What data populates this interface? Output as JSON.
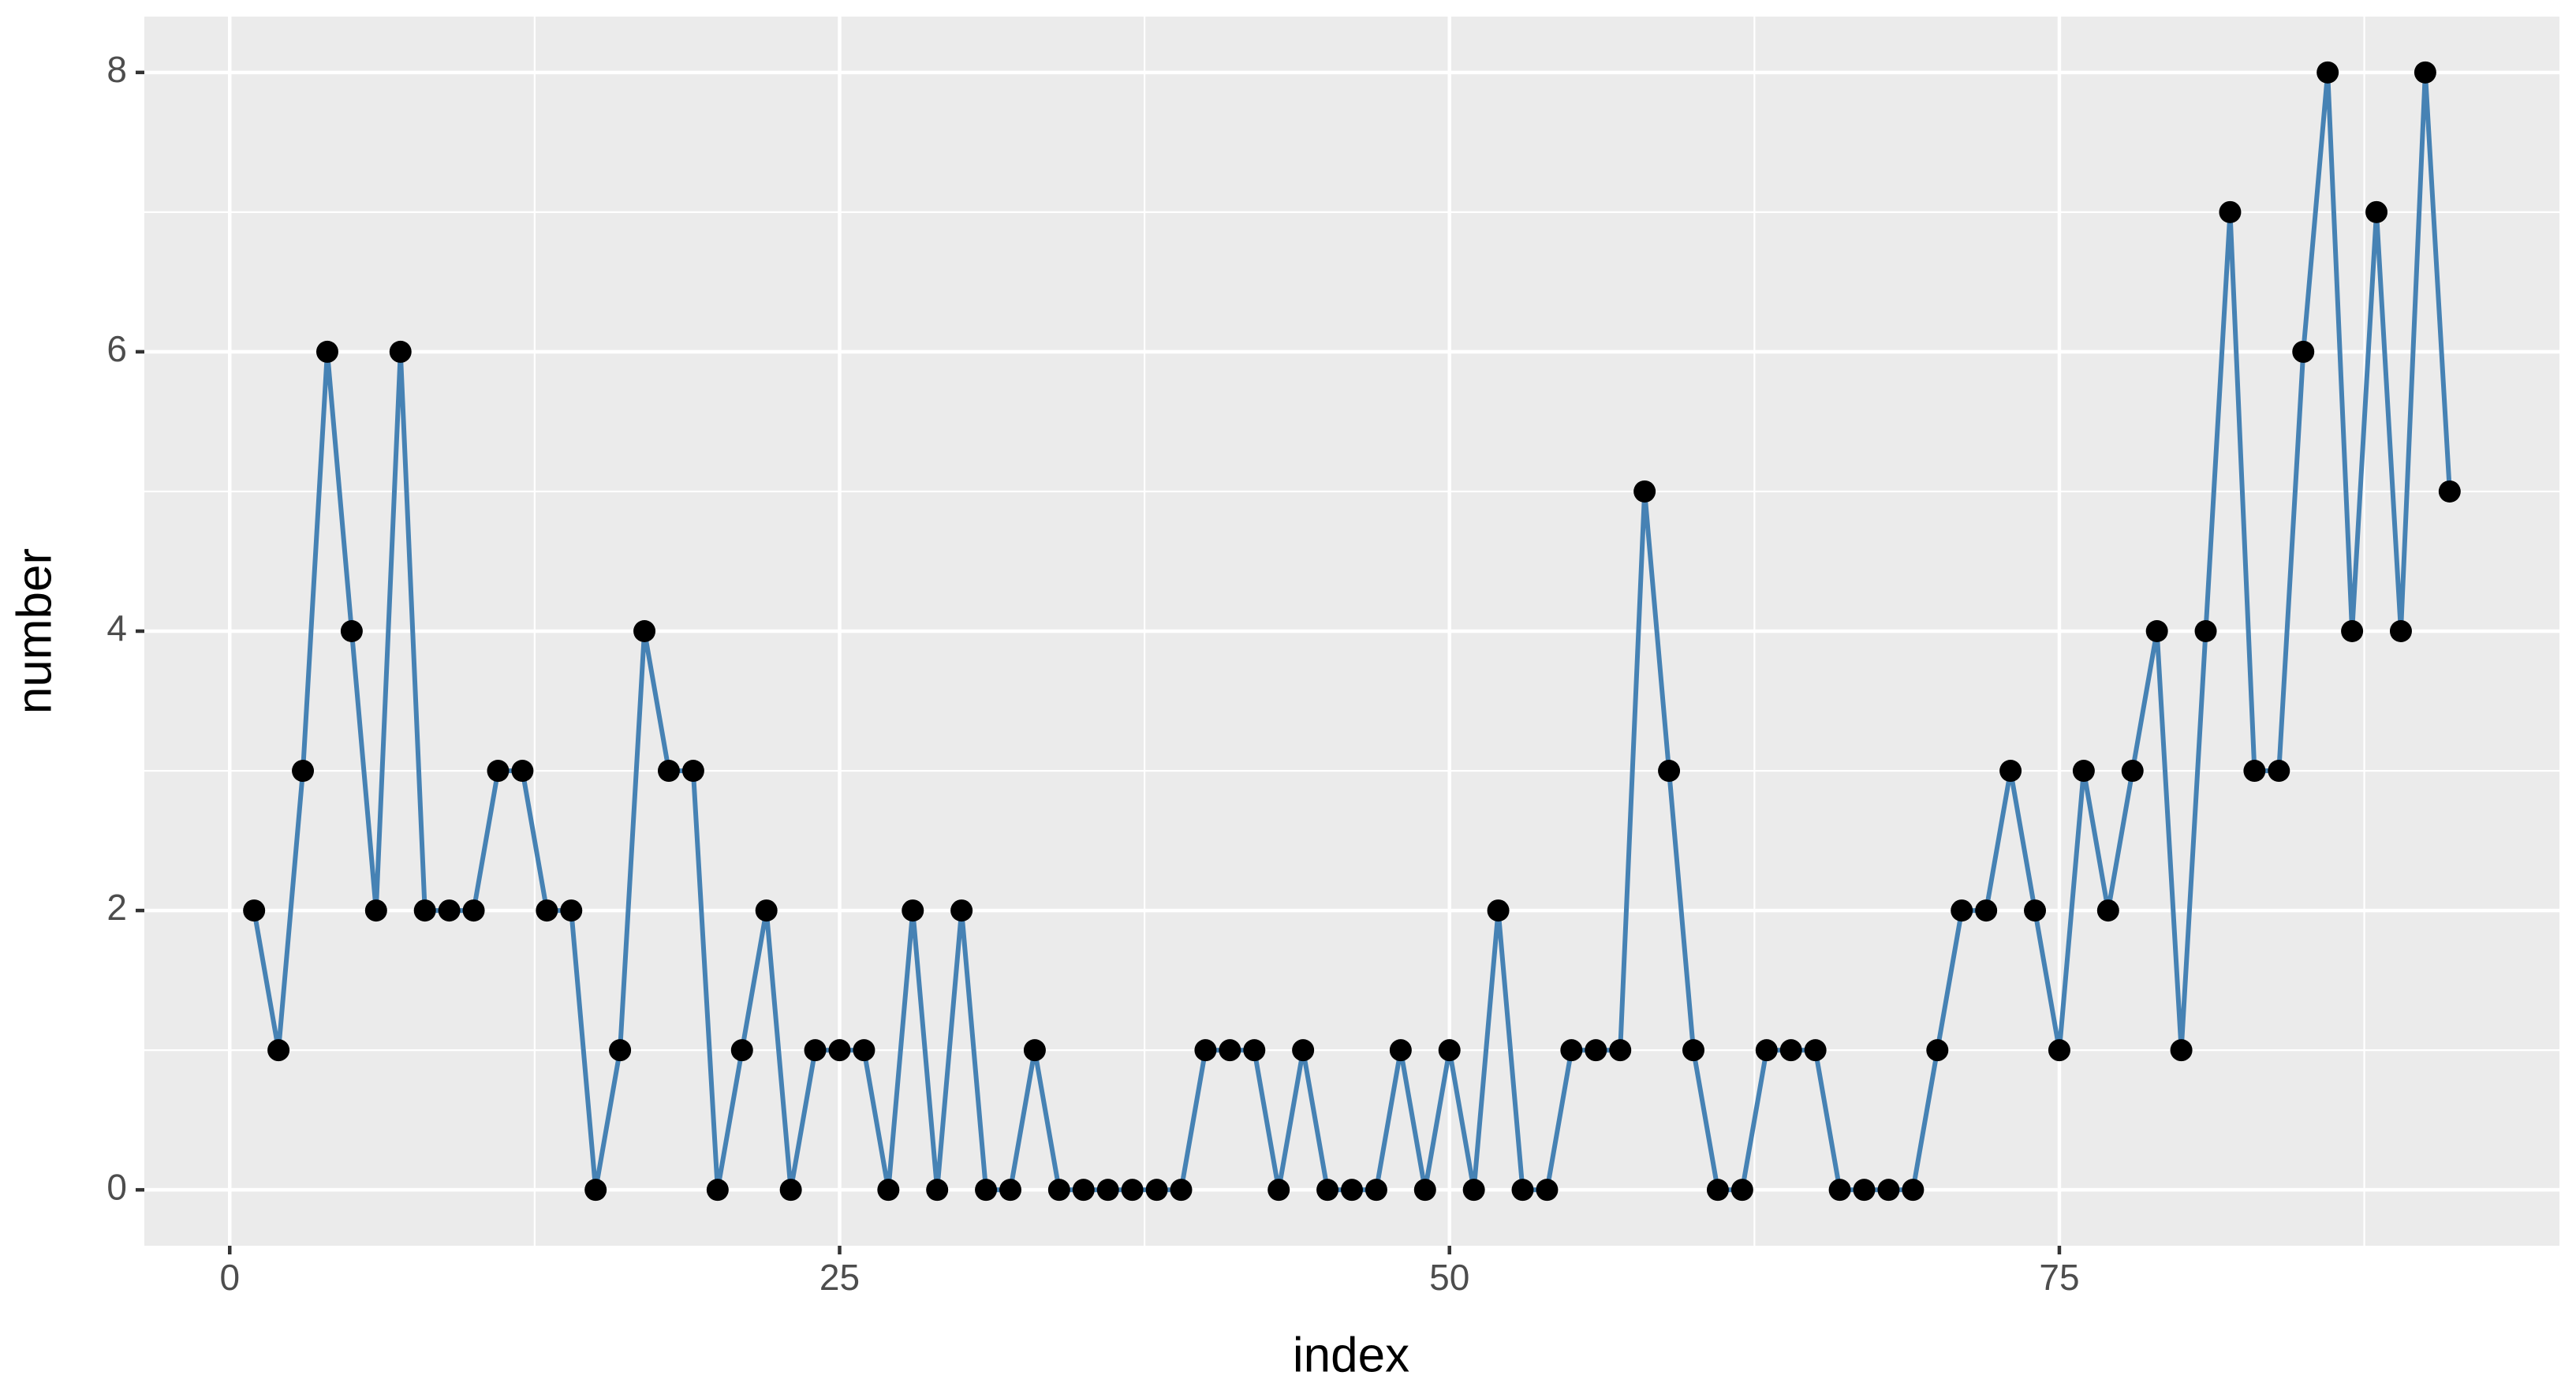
{
  "chart_data": {
    "type": "line",
    "x_label": "index",
    "y_label": "number",
    "x": [
      1,
      2,
      3,
      4,
      5,
      6,
      7,
      8,
      9,
      10,
      11,
      12,
      13,
      14,
      15,
      16,
      17,
      18,
      19,
      20,
      21,
      22,
      23,
      24,
      25,
      26,
      27,
      28,
      29,
      30,
      31,
      32,
      33,
      34,
      35,
      36,
      37,
      38,
      39,
      40,
      41,
      42,
      43,
      44,
      45,
      46,
      47,
      48,
      49,
      50,
      51,
      52,
      53,
      54,
      55,
      56,
      57,
      58,
      59,
      60,
      61,
      62,
      63,
      64,
      65,
      66,
      67,
      68,
      69,
      70,
      71,
      72,
      73,
      74,
      75,
      76,
      77,
      78,
      79,
      80,
      81,
      82,
      83,
      84,
      85,
      86,
      87,
      88,
      89,
      90,
      91
    ],
    "values": [
      2,
      1,
      3,
      6,
      4,
      2,
      6,
      2,
      2,
      2,
      3,
      3,
      2,
      2,
      0,
      1,
      4,
      3,
      3,
      0,
      1,
      2,
      0,
      1,
      1,
      1,
      0,
      2,
      0,
      2,
      0,
      0,
      1,
      0,
      0,
      0,
      0,
      0,
      0,
      1,
      1,
      1,
      0,
      1,
      0,
      0,
      0,
      1,
      0,
      1,
      0,
      2,
      0,
      0,
      1,
      1,
      1,
      5,
      3,
      1,
      0,
      0,
      1,
      1,
      1,
      0,
      0,
      0,
      0,
      1,
      2,
      2,
      3,
      2,
      1,
      3,
      2,
      3,
      4,
      1,
      4,
      7,
      3,
      3,
      6,
      8,
      4,
      7,
      4,
      8,
      5
    ],
    "color": "#4682b4",
    "point_color": "#000000",
    "xlim": [
      -3.5,
      95.5
    ],
    "ylim": [
      -0.4,
      8.4
    ],
    "xticks": [
      0,
      25,
      50,
      75
    ],
    "yticks": [
      0,
      2,
      4,
      6,
      8
    ],
    "xminorticks": [
      12.5,
      37.5,
      62.5,
      87.5
    ],
    "yminorticks": [
      1,
      3,
      5,
      7
    ],
    "grid": true
  }
}
